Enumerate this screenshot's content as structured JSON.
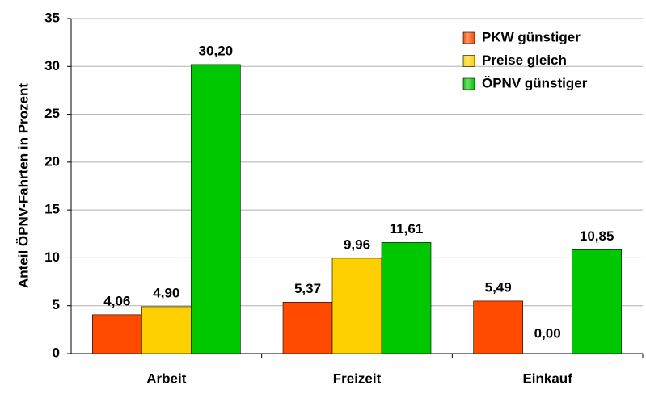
{
  "chart_data": {
    "type": "bar",
    "y_label": "Anteil ÖPNV-Fahrten in Prozent",
    "categories": [
      "Arbeit",
      "Freizeit",
      "Einkauf"
    ],
    "series": [
      {
        "name": "PKW günstiger",
        "color": "#ff4a00",
        "values": [
          4.06,
          5.37,
          5.49
        ],
        "value_labels": [
          "4,06",
          "5,37",
          "5,49"
        ]
      },
      {
        "name": "Preise gleich",
        "color": "#ffd000",
        "values": [
          4.9,
          9.96,
          0.0
        ],
        "value_labels": [
          "4,90",
          "9,96",
          "0,00"
        ]
      },
      {
        "name": "ÖPNV günstiger",
        "color": "#00c800",
        "values": [
          30.2,
          11.61,
          10.85
        ],
        "value_labels": [
          "30,20",
          "11,61",
          "10,85"
        ]
      }
    ],
    "ylim": [
      0,
      35
    ],
    "yticks": [
      0,
      5,
      10,
      15,
      20,
      25,
      30,
      35
    ],
    "grid": true,
    "legend": "top-right"
  }
}
